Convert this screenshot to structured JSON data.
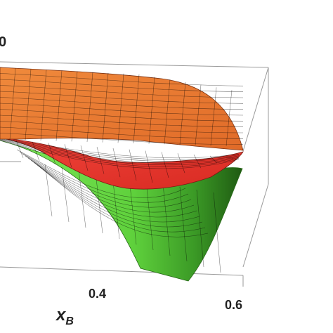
{
  "chart_data": {
    "type": "surface3d",
    "title": "",
    "x_axis": {
      "label_base": "x",
      "label_sub": "B",
      "ticks": [
        "0.4",
        "0.6"
      ]
    },
    "partial_top_tick": "0",
    "surfaces": [
      {
        "name": "",
        "color": "#e8742e",
        "description_level": "upper"
      },
      {
        "name": "",
        "color": "#e8382c",
        "description_level": "middle"
      },
      {
        "name": "",
        "color": "#6fe04a",
        "description_level": "lower"
      }
    ],
    "colors": {
      "orange": "#e8742e",
      "red": "#e8382c",
      "green": "#6fe04a",
      "green_dark": "#1f5a12"
    },
    "grid": false,
    "legend": "none"
  }
}
